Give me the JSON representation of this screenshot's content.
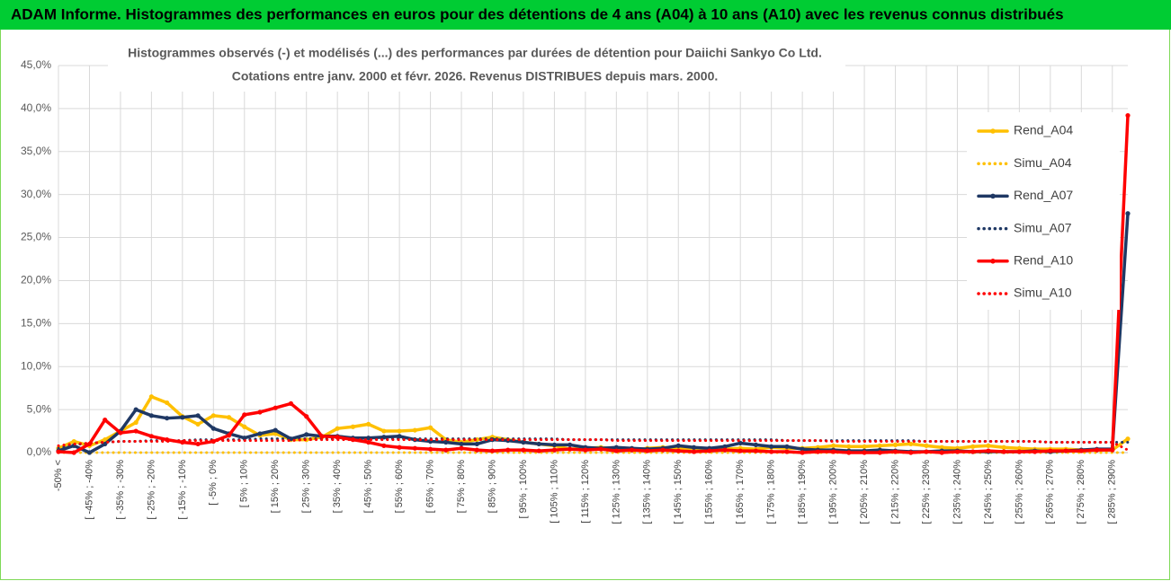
{
  "header": "ADAM Informe. Histogrammes des performances en euros pour des détentions de 4 ans (A04) à 10 ans (A10) avec les revenus connus distribués",
  "chart_data": {
    "type": "line",
    "title": "Histogrammes observés (-) et modélisés (...) des performances par durées de détention pour Daiichi Sankyo Co Ltd.",
    "subtitle": "Cotations entre janv. 2000 et févr. 2026. Revenus DISTRIBUES depuis mars. 2000.",
    "categories": [
      "-50% <",
      null,
      "[ -45% ; -40%",
      null,
      "[ -35% ; -30%",
      null,
      "[ -25% ; -20%",
      null,
      "[ -15% ; -10%",
      null,
      "[ -5% ; 0%",
      null,
      "[ 5% ; 10%",
      null,
      "[ 15% ; 20%",
      null,
      "[ 25% ; 30%",
      null,
      "[ 35% ; 40%",
      null,
      "[ 45% ; 50%",
      null,
      "[ 55% ; 60%",
      null,
      "[ 65% ; 70%",
      null,
      "[ 75% ; 80%",
      null,
      "[ 85% ; 90%",
      null,
      "[ 95% ; 100%",
      null,
      "[ 105% ; 110%",
      null,
      "[ 115% ; 120%",
      null,
      "[ 125% ; 130%",
      null,
      "[ 135% ; 140%",
      null,
      "[ 145% ; 150%",
      null,
      "[ 155% ; 160%",
      null,
      "[ 165% ; 170%",
      null,
      "[ 175% ; 180%",
      null,
      "[ 185% ; 190%",
      null,
      "[ 195% ; 200%",
      null,
      "[ 205% ; 210%",
      null,
      "[ 215% ; 220%",
      null,
      "[ 225% ; 230%",
      null,
      "[ 235% ; 240%",
      null,
      "[ 245% ; 250%",
      null,
      "[ 255% ; 260%",
      null,
      "[ 265% ; 270%",
      null,
      "[ 275% ; 280%",
      null,
      "[ 285% ; 290%",
      null
    ],
    "ylim": [
      0,
      45
    ],
    "yticks": [
      {
        "value": 0,
        "label": "0,0%"
      },
      {
        "value": 5,
        "label": "5,0%"
      },
      {
        "value": 10,
        "label": "10,0%"
      },
      {
        "value": 15,
        "label": "15,0%"
      },
      {
        "value": 20,
        "label": "20,0%"
      },
      {
        "value": 25,
        "label": "25,0%"
      },
      {
        "value": 30,
        "label": "30,0%"
      },
      {
        "value": 35,
        "label": "35,0%"
      },
      {
        "value": 40,
        "label": "40,0%"
      },
      {
        "value": 45,
        "label": "45,0%"
      }
    ],
    "grid": true,
    "legend": "right",
    "series": [
      {
        "name": "Rend_A04",
        "color": "#ffc000",
        "style": "solid",
        "values": [
          0.5,
          1.3,
          0.8,
          1.5,
          2.5,
          3.5,
          6.5,
          5.8,
          4.2,
          3.3,
          4.3,
          4.1,
          3.0,
          2.0,
          2.2,
          1.5,
          1.5,
          1.8,
          2.8,
          3.0,
          3.3,
          2.5,
          2.5,
          2.6,
          2.9,
          1.5,
          1.2,
          1.5,
          1.8,
          1.5,
          1.2,
          1.0,
          0.8,
          0.4,
          0.5,
          0.6,
          0.4,
          0.3,
          0.5,
          0.6,
          0.5,
          0.5,
          0.4,
          0.4,
          0.5,
          0.4,
          0.6,
          0.5,
          0.5,
          0.6,
          0.8,
          0.7,
          0.7,
          0.8,
          0.9,
          1.0,
          0.8,
          0.6,
          0.5,
          0.7,
          0.8,
          0.6,
          0.5,
          0.4,
          0.4,
          0.4,
          0.3,
          0.3,
          0.3,
          1.6
        ]
      },
      {
        "name": "Simu_A04",
        "color": "#ffc000",
        "style": "dotted",
        "values": [
          0,
          0,
          0,
          0,
          0,
          0,
          0,
          0,
          0,
          0,
          0,
          0,
          0,
          0,
          0,
          0,
          0,
          0,
          0,
          0,
          0,
          0,
          0,
          0,
          0,
          0,
          0,
          0,
          0,
          0,
          0,
          0,
          0,
          0,
          0,
          0,
          0,
          0,
          0,
          0,
          0,
          0,
          0,
          0,
          0,
          0,
          0,
          0,
          0,
          0,
          0,
          0,
          0,
          0,
          0,
          0,
          0,
          0,
          0,
          0,
          0,
          0,
          0,
          0,
          0,
          0,
          0,
          0,
          0,
          0
        ]
      },
      {
        "name": "Rend_A07",
        "color": "#1f3864",
        "style": "solid",
        "values": [
          0.2,
          0.8,
          0.0,
          1.0,
          2.5,
          5.0,
          4.3,
          4.0,
          4.1,
          4.3,
          2.8,
          2.2,
          1.7,
          2.2,
          2.6,
          1.6,
          2.1,
          1.9,
          1.9,
          1.7,
          1.7,
          1.8,
          1.9,
          1.5,
          1.3,
          1.2,
          1.0,
          1.0,
          1.5,
          1.4,
          1.2,
          1.0,
          0.9,
          0.9,
          0.6,
          0.5,
          0.6,
          0.5,
          0.4,
          0.5,
          0.8,
          0.6,
          0.5,
          0.7,
          1.1,
          0.9,
          0.7,
          0.7,
          0.4,
          0.3,
          0.3,
          0.2,
          0.2,
          0.3,
          0.2,
          0.1,
          0.1,
          0.2,
          0.2,
          0.1,
          0.1,
          0.1,
          0.1,
          0.2,
          0.1,
          0.2,
          0.3,
          0.4,
          0.4,
          27.8
        ]
      },
      {
        "name": "Simu_A07",
        "color": "#1f3864",
        "style": "dotted",
        "values": [
          0.5,
          0.9,
          1.1,
          1.2,
          1.3,
          1.3,
          1.4,
          1.4,
          1.4,
          1.5,
          1.5,
          1.5,
          1.5,
          1.6,
          1.6,
          1.6,
          1.6,
          1.6,
          1.6,
          1.6,
          1.6,
          1.6,
          1.6,
          1.6,
          1.6,
          1.6,
          1.6,
          1.6,
          1.6,
          1.6,
          1.6,
          1.6,
          1.6,
          1.5,
          1.5,
          1.5,
          1.5,
          1.5,
          1.5,
          1.5,
          1.5,
          1.5,
          1.5,
          1.5,
          1.5,
          1.5,
          1.5,
          1.4,
          1.4,
          1.4,
          1.4,
          1.4,
          1.4,
          1.4,
          1.4,
          1.4,
          1.3,
          1.3,
          1.3,
          1.3,
          1.3,
          1.3,
          1.3,
          1.3,
          1.2,
          1.2,
          1.2,
          1.2,
          1.2,
          1.2
        ]
      },
      {
        "name": "Rend_A10",
        "color": "#ff0000",
        "style": "solid",
        "values": [
          0.1,
          0.0,
          1.0,
          3.8,
          2.3,
          2.5,
          1.9,
          1.5,
          1.2,
          1.0,
          1.3,
          2.0,
          4.4,
          4.7,
          5.2,
          5.7,
          4.2,
          1.9,
          1.8,
          1.5,
          1.2,
          0.8,
          0.6,
          0.5,
          0.4,
          0.3,
          0.5,
          0.3,
          0.2,
          0.3,
          0.3,
          0.2,
          0.3,
          0.4,
          0.3,
          0.4,
          0.2,
          0.3,
          0.2,
          0.3,
          0.2,
          0.1,
          0.2,
          0.3,
          0.2,
          0.2,
          0.1,
          0.1,
          0.0,
          0.1,
          0.1,
          0.0,
          0.0,
          0.0,
          0.1,
          0.0,
          0.1,
          0.0,
          0.1,
          0.1,
          0.2,
          0.1,
          0.1,
          0.1,
          0.2,
          0.2,
          0.2,
          0.3,
          0.3,
          39.2
        ]
      },
      {
        "name": "Simu_A10",
        "color": "#ff0000",
        "style": "dotted",
        "values": [
          0.8,
          1.0,
          1.1,
          1.2,
          1.3,
          1.3,
          1.3,
          1.3,
          1.4,
          1.4,
          1.4,
          1.4,
          1.4,
          1.4,
          1.4,
          1.4,
          1.5,
          1.5,
          1.5,
          1.5,
          1.5,
          1.5,
          1.5,
          1.5,
          1.5,
          1.5,
          1.5,
          1.5,
          1.5,
          1.5,
          1.5,
          1.5,
          1.5,
          1.5,
          1.5,
          1.5,
          1.4,
          1.4,
          1.4,
          1.4,
          1.4,
          1.4,
          1.4,
          1.4,
          1.4,
          1.4,
          1.4,
          1.4,
          1.4,
          1.4,
          1.3,
          1.3,
          1.3,
          1.3,
          1.3,
          1.3,
          1.3,
          1.3,
          1.3,
          1.3,
          1.3,
          1.3,
          1.3,
          1.3,
          1.2,
          1.2,
          1.2,
          1.2,
          1.2,
          0.3
        ]
      }
    ]
  }
}
